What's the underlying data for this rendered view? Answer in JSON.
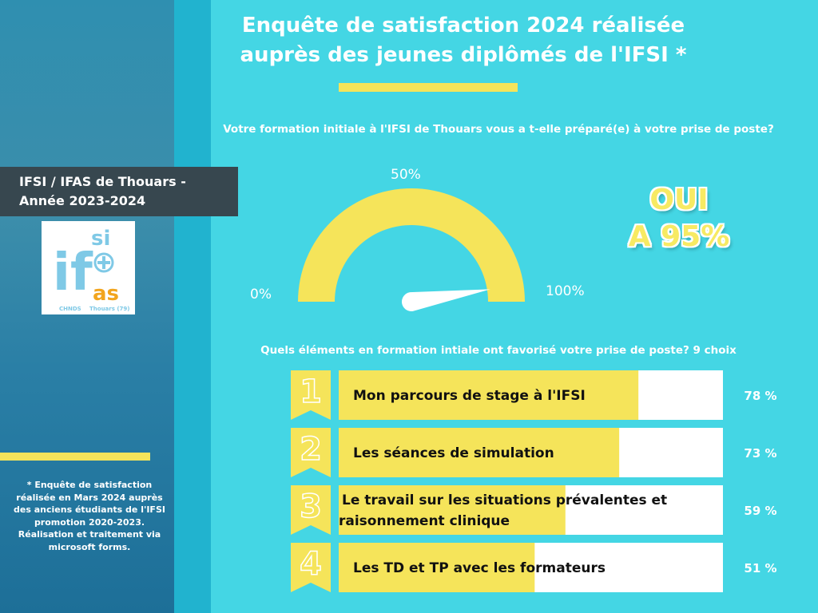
{
  "header": {
    "title_line1": "Enquête de satisfaction 2024 réalisée",
    "title_line2": "auprès des jeunes diplômés de l'IFSI *"
  },
  "org": {
    "line1": "IFSI / IFAS  de Thouars -",
    "line2": "Année 2023-2024"
  },
  "logo": {
    "text_if": "if",
    "text_si": "si",
    "text_as": "as",
    "text_chnds": "CHNDS",
    "text_thouars": "Thouars (79)"
  },
  "question1": "Votre formation initiale à l'IFSI de Thouars vous a t-elle préparé(e) à votre prise de poste?",
  "gauge": {
    "label_min": "0%",
    "label_mid": "50%",
    "label_max": "100%",
    "value_percent": 95,
    "highlight_line1": "OUI",
    "highlight_line2": "A 95%"
  },
  "question2": "Quels éléments en formation intiale ont favorisé votre prise de poste? 9 choix",
  "chart_data": {
    "type": "bar",
    "orientation": "horizontal",
    "categories": [
      "Mon parcours de stage à l'IFSI",
      "Les séances de simulation",
      "Le travail sur les situations prévalentes et raisonnement clinique",
      "Les TD et TP avec les formateurs"
    ],
    "values": [
      78,
      73,
      59,
      51
    ],
    "value_labels": [
      "78 %",
      "73 %",
      "59 %",
      "51 %"
    ],
    "ranks": [
      "1",
      "2",
      "3",
      "4"
    ],
    "xlim": [
      0,
      100
    ],
    "grid": false,
    "title": "Quels éléments en formation intiale ont favorisé votre prise de poste? 9 choix"
  },
  "footnote": "* Enquête de satisfaction réalisée en Mars 2024 auprès des anciens étudiants de l'IFSI promotion 2020-2023. Réalisation et traitement via microsoft forms.",
  "colors": {
    "background": "#44d6e4",
    "accent_yellow": "#f5e45a",
    "dark_box": "#37474f",
    "text_white": "#ffffff",
    "text_dark": "#111111"
  }
}
